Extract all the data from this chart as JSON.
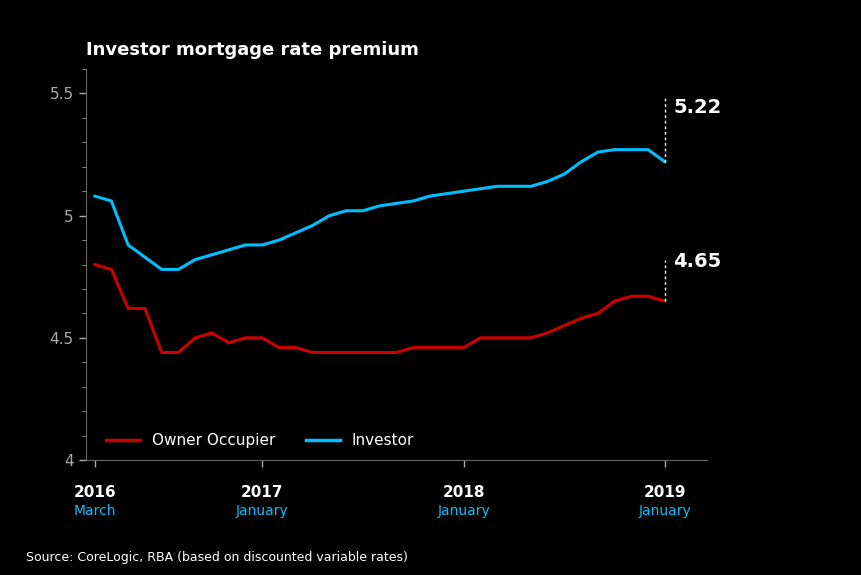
{
  "title": "Investor mortgage rate premium",
  "background_color": "#000000",
  "axis_color": "#ffffff",
  "ylim": [
    4.0,
    5.6
  ],
  "yticks": [
    4.0,
    4.5,
    5.0,
    5.5
  ],
  "source_text": "Source: CoreLogic, RBA (based on discounted variable rates)",
  "x_tick_positions": [
    0,
    10,
    22,
    34
  ],
  "year_labels": [
    "2016",
    "2017",
    "2018",
    "2019"
  ],
  "month_labels": [
    "March",
    "January",
    "January",
    "January"
  ],
  "investor_label": "Investor",
  "owner_label": "Owner Occupier",
  "investor_color": "#00bfff",
  "owner_color": "#cc0000",
  "annotation_investor": "5.22",
  "annotation_owner": "4.65",
  "owner_x": [
    0,
    1,
    2,
    3,
    4,
    5,
    6,
    7,
    8,
    9,
    10,
    11,
    12,
    13,
    14,
    15,
    16,
    17,
    18,
    19,
    20,
    21,
    22,
    23,
    24,
    25,
    26,
    27,
    28,
    29,
    30,
    31,
    32,
    33,
    34
  ],
  "owner_y": [
    4.8,
    4.78,
    4.62,
    4.62,
    4.44,
    4.44,
    4.5,
    4.52,
    4.48,
    4.5,
    4.5,
    4.46,
    4.46,
    4.44,
    4.44,
    4.44,
    4.44,
    4.44,
    4.44,
    4.46,
    4.46,
    4.46,
    4.46,
    4.5,
    4.5,
    4.5,
    4.5,
    4.52,
    4.55,
    4.58,
    4.6,
    4.65,
    4.67,
    4.67,
    4.65
  ],
  "investor_x": [
    0,
    1,
    2,
    3,
    4,
    5,
    6,
    7,
    8,
    9,
    10,
    11,
    12,
    13,
    14,
    15,
    16,
    17,
    18,
    19,
    20,
    21,
    22,
    23,
    24,
    25,
    26,
    27,
    28,
    29,
    30,
    31,
    32,
    33,
    34
  ],
  "investor_y": [
    5.08,
    5.06,
    4.88,
    4.83,
    4.78,
    4.78,
    4.82,
    4.84,
    4.86,
    4.88,
    4.88,
    4.9,
    4.93,
    4.96,
    5.0,
    5.02,
    5.02,
    5.04,
    5.05,
    5.06,
    5.08,
    5.09,
    5.1,
    5.11,
    5.12,
    5.12,
    5.12,
    5.14,
    5.17,
    5.22,
    5.26,
    5.27,
    5.27,
    5.27,
    5.22
  ]
}
